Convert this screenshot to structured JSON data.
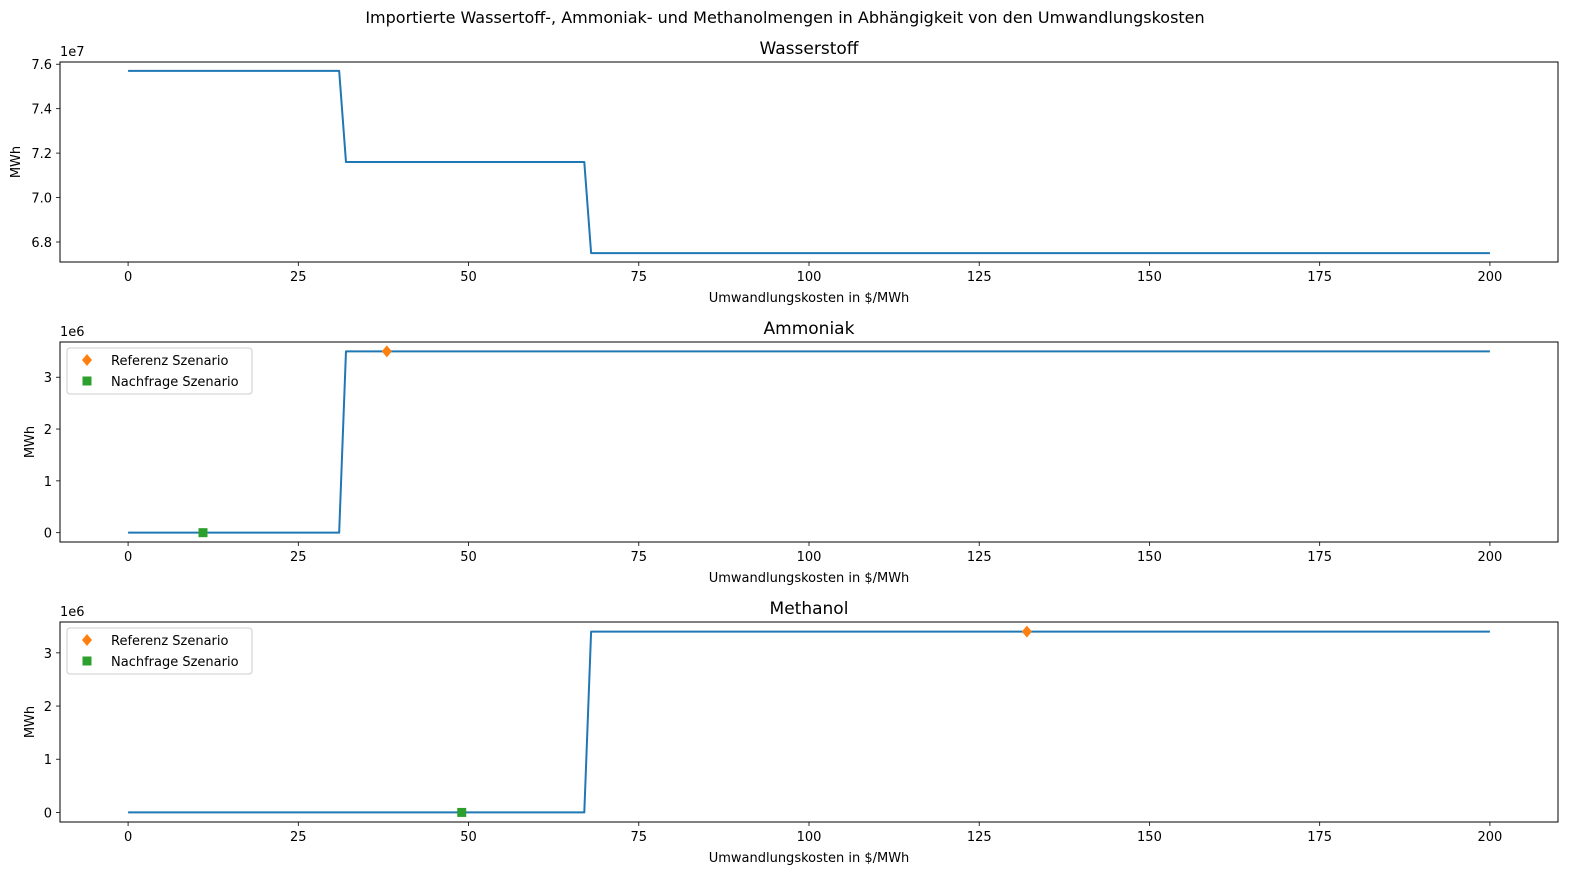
{
  "figure": {
    "suptitle": "Importierte Wassertoff-, Ammoniak- und Methanolmengen in Abhängigkeit von den Umwandlungskosten"
  },
  "colors": {
    "line": "#1f77b4",
    "referenz": "#ff7f0e",
    "nachfrage": "#2ca02c"
  },
  "chart_data": [
    {
      "type": "line",
      "title": "Wasserstoff",
      "xlabel": "Umwandlungskosten in $/MWh",
      "ylabel": "MWh",
      "offset_label": "1e7",
      "xlim": [
        -10,
        210
      ],
      "ylim": [
        67100000,
        76100000
      ],
      "xticks": [
        0,
        25,
        50,
        75,
        100,
        125,
        150,
        175,
        200
      ],
      "yticks": [
        6.8,
        7.0,
        7.2,
        7.4,
        7.6
      ],
      "ytick_scale": 10000000,
      "grid": false,
      "series": [
        {
          "x": [
            0,
            31,
            32,
            67,
            68,
            200
          ],
          "y": [
            75700000,
            75700000,
            71600000,
            71600000,
            67500000,
            67500000
          ]
        }
      ],
      "markers": []
    },
    {
      "type": "line",
      "title": "Ammoniak",
      "xlabel": "Umwandlungskosten in $/MWh",
      "ylabel": "MWh",
      "offset_label": "1e6",
      "xlim": [
        -10,
        210
      ],
      "ylim": [
        -180000,
        3680000
      ],
      "xticks": [
        0,
        25,
        50,
        75,
        100,
        125,
        150,
        175,
        200
      ],
      "yticks": [
        0,
        1,
        2,
        3
      ],
      "ytick_scale": 1000000,
      "grid": false,
      "series": [
        {
          "x": [
            0,
            31,
            32,
            200
          ],
          "y": [
            0,
            0,
            3500000,
            3500000
          ]
        }
      ],
      "legend_position": "upper left",
      "markers": [
        {
          "name": "Referenz Szenario",
          "shape": "diamond",
          "color": "#ff7f0e",
          "x": 38,
          "y": 3500000
        },
        {
          "name": "Nachfrage Szenario",
          "shape": "square",
          "color": "#2ca02c",
          "x": 11,
          "y": 0
        }
      ]
    },
    {
      "type": "line",
      "title": "Methanol",
      "xlabel": "Umwandlungskosten in $/MWh",
      "ylabel": "MWh",
      "offset_label": "1e6",
      "xlim": [
        -10,
        210
      ],
      "ylim": [
        -180000,
        3580000
      ],
      "xticks": [
        0,
        25,
        50,
        75,
        100,
        125,
        150,
        175,
        200
      ],
      "yticks": [
        0,
        1,
        2,
        3
      ],
      "ytick_scale": 1000000,
      "grid": false,
      "series": [
        {
          "x": [
            0,
            67,
            68,
            200
          ],
          "y": [
            0,
            0,
            3400000,
            3400000
          ]
        }
      ],
      "legend_position": "upper left",
      "markers": [
        {
          "name": "Referenz Szenario",
          "shape": "diamond",
          "color": "#ff7f0e",
          "x": 132,
          "y": 3400000
        },
        {
          "name": "Nachfrage Szenario",
          "shape": "square",
          "color": "#2ca02c",
          "x": 49,
          "y": 0
        }
      ]
    }
  ]
}
